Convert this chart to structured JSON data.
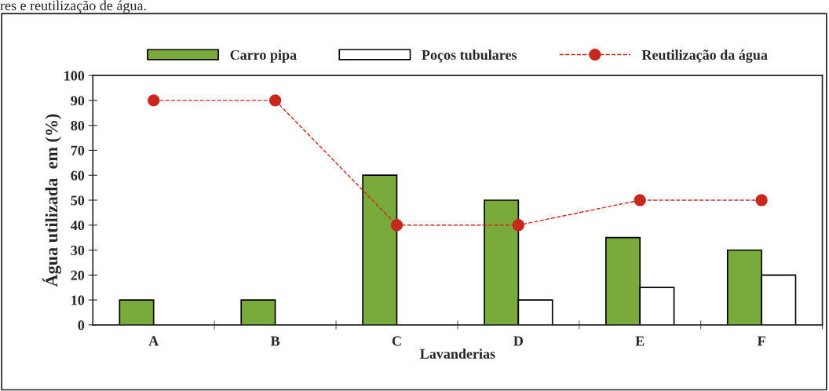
{
  "chart_data": {
    "type": "bar",
    "xlabel": "Lavanderias",
    "ylabel": "Água utilizada  em (%)",
    "categories": [
      "A",
      "B",
      "C",
      "D",
      "E",
      "F"
    ],
    "series": [
      {
        "name": "Carro pipa",
        "color": "#7aaa3c",
        "values": [
          10,
          10,
          60,
          50,
          35,
          30
        ]
      },
      {
        "name": "Poços tubulares",
        "color": "#ffffff",
        "values": [
          null,
          null,
          null,
          10,
          15,
          20
        ]
      },
      {
        "name": "Reutilização da água",
        "type": "line",
        "color": "#c8281e",
        "values": [
          90,
          90,
          40,
          40,
          50,
          50
        ],
        "marker": "circle",
        "line_style": "dashed"
      }
    ],
    "ylim": [
      0,
      100
    ],
    "yticks": [
      0,
      10,
      20,
      30,
      40,
      50,
      60,
      70,
      80,
      90,
      100
    ],
    "legend": "top",
    "grid": false,
    "annotations": [
      "res e reutilização de água."
    ]
  }
}
